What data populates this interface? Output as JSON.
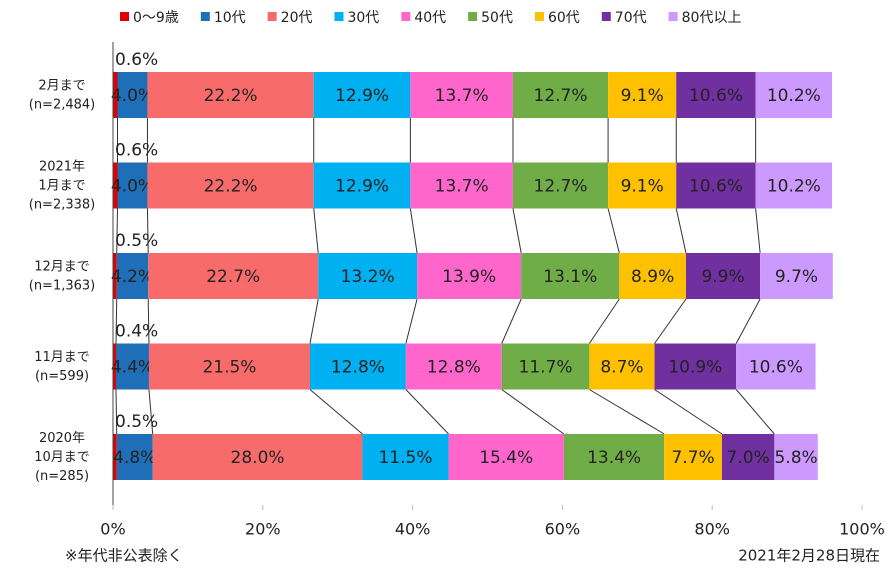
{
  "chart_data": {
    "type": "stacked_bar_horizontal",
    "categories": [
      "2月まで\n(n=2,484)",
      "2021年\n1月まで\n(n=2,338)",
      "12月まで\n(n=1,363)",
      "11月まで\n(n=599)",
      "2020年\n10月まで\n(n=285)"
    ],
    "series": [
      {
        "name": "0～9歳",
        "color": "#e00000",
        "values": [
          0.6,
          0.6,
          0.5,
          0.4,
          0.5
        ],
        "value_labels": [
          "0.6%",
          "0.6%",
          "0.5%",
          "0.4%",
          "0.5%"
        ]
      },
      {
        "name": "10代",
        "color": "#1f6fb8",
        "values": [
          4.0,
          4.0,
          4.2,
          4.4,
          4.8
        ],
        "value_labels": [
          "4.0%",
          "4.0%",
          "4.2%",
          "4.4%",
          "4.8%"
        ]
      },
      {
        "name": "20代",
        "color": "#f86b6b",
        "values": [
          22.2,
          22.2,
          22.7,
          21.5,
          28.0
        ],
        "value_labels": [
          "22.2%",
          "22.2%",
          "22.7%",
          "21.5%",
          "28.0%"
        ]
      },
      {
        "name": "30代",
        "color": "#00b0f0",
        "values": [
          12.9,
          12.9,
          13.2,
          12.8,
          11.5
        ],
        "value_labels": [
          "12.9%",
          "12.9%",
          "13.2%",
          "12.8%",
          "11.5%"
        ]
      },
      {
        "name": "40代",
        "color": "#ff66cc",
        "values": [
          13.7,
          13.7,
          13.9,
          12.8,
          15.4
        ],
        "value_labels": [
          "13.7%",
          "13.7%",
          "13.9%",
          "12.8%",
          "15.4%"
        ]
      },
      {
        "name": "50代",
        "color": "#70ad47",
        "values": [
          12.7,
          12.7,
          13.1,
          11.7,
          13.4
        ],
        "value_labels": [
          "12.7%",
          "12.7%",
          "13.1%",
          "11.7%",
          "13.4%"
        ]
      },
      {
        "name": "60代",
        "color": "#ffc000",
        "values": [
          9.1,
          9.1,
          8.9,
          8.7,
          7.7
        ],
        "value_labels": [
          "9.1%",
          "9.1%",
          "8.9%",
          "8.7%",
          "7.7%"
        ]
      },
      {
        "name": "70代",
        "color": "#7030a0",
        "values": [
          10.6,
          10.6,
          9.9,
          10.9,
          7.0
        ],
        "value_labels": [
          "10.6%",
          "10.6%",
          "9.9%",
          "10.9%",
          "7.0%"
        ]
      },
      {
        "name": "80代以上",
        "color": "#cc99ff",
        "values": [
          10.2,
          10.2,
          9.7,
          10.6,
          5.8
        ],
        "value_labels": [
          "10.2%",
          "10.2%",
          "9.7%",
          "10.6%",
          "5.8%"
        ]
      }
    ],
    "xlim": [
      0,
      100
    ],
    "xticks": [
      {
        "value": 0,
        "label": "0%"
      },
      {
        "value": 20,
        "label": "20%"
      },
      {
        "value": 40,
        "label": "40%"
      },
      {
        "value": 60,
        "label": "60%"
      },
      {
        "value": 80,
        "label": "80%"
      },
      {
        "value": 100,
        "label": "100%"
      }
    ],
    "legend": "top",
    "notes": [
      "※年代非公表除く",
      "2021年2月28日現在"
    ]
  }
}
